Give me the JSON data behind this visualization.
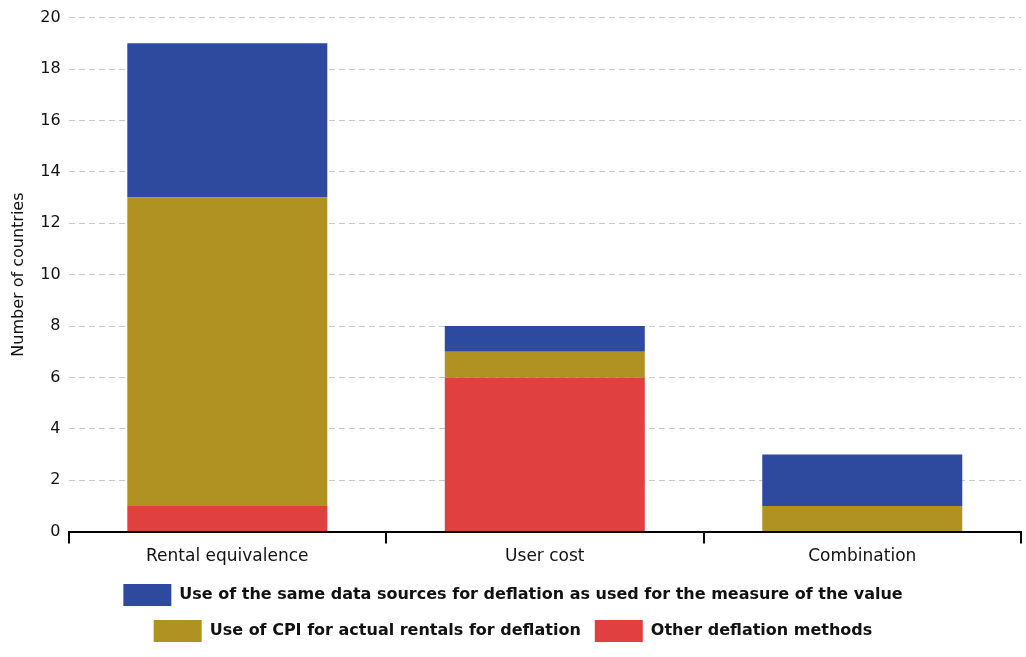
{
  "chart_data": {
    "type": "bar",
    "stacked": true,
    "ylabel": "Number of countries",
    "categories": [
      "Rental equivalence",
      "User cost",
      "Combination"
    ],
    "series": [
      {
        "name": "Other deflation methods",
        "color": "#e04040",
        "values": [
          1,
          6,
          0
        ]
      },
      {
        "name": "Use of CPI for actual rentals for deflation",
        "color": "#b09223",
        "values": [
          12,
          1,
          1
        ]
      },
      {
        "name": "Use of the same data sources for deflation as used for the measure of the value",
        "color": "#2e4a9e",
        "values": [
          6,
          1,
          2
        ]
      }
    ],
    "ylim": [
      0,
      20
    ],
    "yticks": [
      0,
      2,
      4,
      6,
      8,
      10,
      12,
      14,
      16,
      18,
      20
    ],
    "grid": "y",
    "legend": "bottom"
  }
}
